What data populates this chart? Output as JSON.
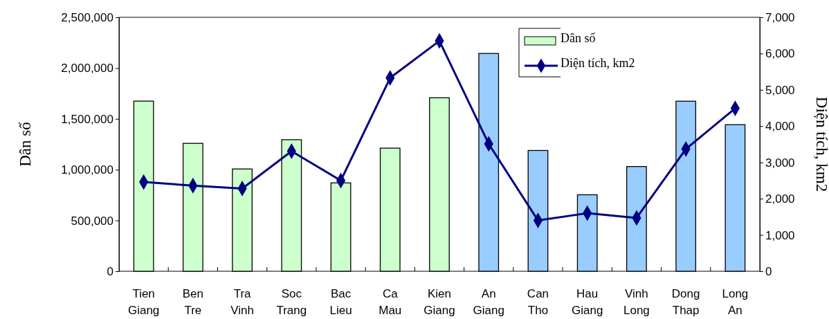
{
  "chart_data": {
    "type": "bar",
    "categories": [
      "Tien Giang",
      "Ben Tre",
      "Tra Vinh",
      "Soc Trang",
      "Bac Lieu",
      "Ca Mau",
      "Kien Giang",
      "An Giang",
      "Can Tho",
      "Hau Giang",
      "Vinh Long",
      "Dong Thap",
      "Long An"
    ],
    "series": [
      {
        "name": "Dân số",
        "color": "#ccffcc",
        "colors": [
          "#ccffcc",
          "#ccffcc",
          "#ccffcc",
          "#ccffcc",
          "#ccffcc",
          "#ccffcc",
          "#ccffcc",
          "#99ccff",
          "#99ccff",
          "#99ccff",
          "#99ccff",
          "#99ccff",
          "#99ccff"
        ],
        "values": [
          1675000,
          1259000,
          1007000,
          1295000,
          870000,
          1212000,
          1708000,
          2144000,
          1189000,
          753000,
          1031000,
          1674000,
          1443000
        ]
      },
      {
        "name": "Diện tích, km2",
        "type": "line",
        "axis": "y2",
        "color": "#000080",
        "marker": "diamond",
        "values": [
          2460,
          2360,
          2280,
          3310,
          2500,
          5330,
          6350,
          3510,
          1400,
          1600,
          1470,
          3370,
          4490
        ]
      }
    ],
    "ylabel": "Dân số",
    "y2label": "Diện tích, km2",
    "ylim": [
      0,
      2500000
    ],
    "yticks": [
      {
        "value": 0,
        "label": "0"
      },
      {
        "value": 500000,
        "label": "500,000"
      },
      {
        "value": 1000000,
        "label": "1,000,000"
      },
      {
        "value": 1500000,
        "label": "1,500,000"
      },
      {
        "value": 2000000,
        "label": "2,000,000"
      },
      {
        "value": 2500000,
        "label": "2,500,000"
      }
    ],
    "y2lim": [
      0,
      7000
    ],
    "y2ticks": [
      {
        "value": 0,
        "label": "0"
      },
      {
        "value": 1000,
        "label": "1,000"
      },
      {
        "value": 2000,
        "label": "2,000"
      },
      {
        "value": 3000,
        "label": "3,000"
      },
      {
        "value": 4000,
        "label": "4,000"
      },
      {
        "value": 5000,
        "label": "5,000"
      },
      {
        "value": 6000,
        "label": "6,000"
      },
      {
        "value": 7000,
        "label": "7,000"
      }
    ],
    "legend": "top right",
    "grid": false
  }
}
